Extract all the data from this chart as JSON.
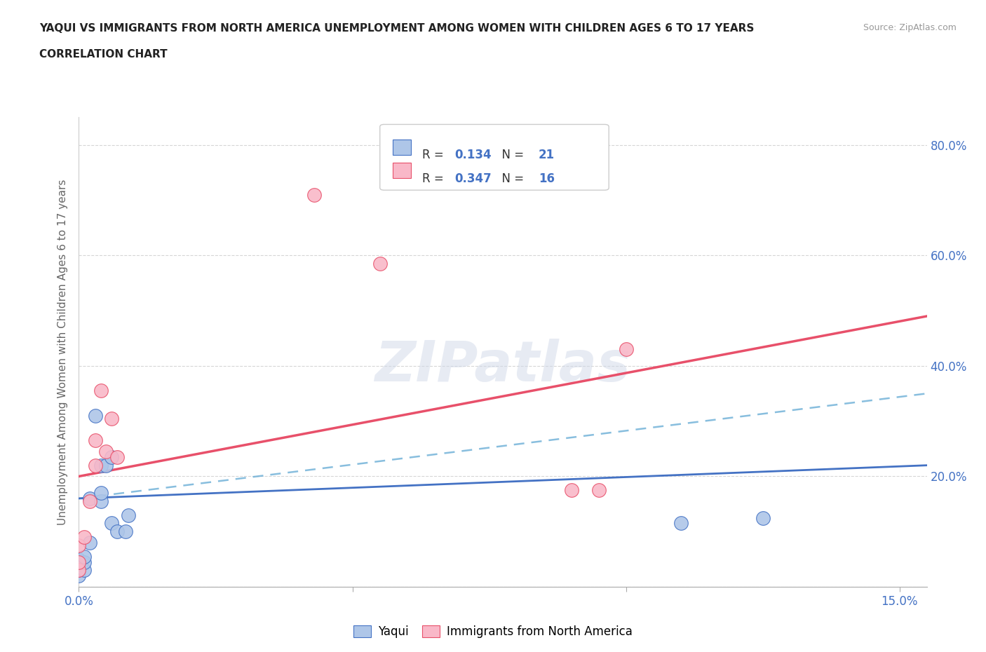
{
  "title_line1": "YAQUI VS IMMIGRANTS FROM NORTH AMERICA UNEMPLOYMENT AMONG WOMEN WITH CHILDREN AGES 6 TO 17 YEARS",
  "title_line2": "CORRELATION CHART",
  "source": "Source: ZipAtlas.com",
  "ylabel": "Unemployment Among Women with Children Ages 6 to 17 years",
  "xlim": [
    0.0,
    0.155
  ],
  "ylim": [
    0.0,
    0.85
  ],
  "watermark": "ZIPatlas",
  "legend_label1": "Yaqui",
  "legend_label2": "Immigrants from North America",
  "color_blue": "#aec6e8",
  "color_pink": "#f9b8c8",
  "line_blue_solid": "#4472c4",
  "line_blue_dash": "#6baed6",
  "line_pink": "#e8506a",
  "yaqui_x": [
    0.0,
    0.0,
    0.0,
    0.0,
    0.001,
    0.001,
    0.001,
    0.002,
    0.002,
    0.003,
    0.004,
    0.004,
    0.004,
    0.005,
    0.006,
    0.006,
    0.007,
    0.0085,
    0.009,
    0.11,
    0.125
  ],
  "yaqui_y": [
    0.02,
    0.03,
    0.04,
    0.05,
    0.03,
    0.045,
    0.055,
    0.08,
    0.16,
    0.31,
    0.155,
    0.17,
    0.22,
    0.22,
    0.115,
    0.235,
    0.1,
    0.1,
    0.13,
    0.115,
    0.125
  ],
  "immna_x": [
    0.0,
    0.0,
    0.0,
    0.001,
    0.002,
    0.003,
    0.003,
    0.004,
    0.005,
    0.006,
    0.007,
    0.043,
    0.055,
    0.09,
    0.095,
    0.1
  ],
  "immna_y": [
    0.03,
    0.045,
    0.075,
    0.09,
    0.155,
    0.22,
    0.265,
    0.355,
    0.245,
    0.305,
    0.235,
    0.71,
    0.585,
    0.175,
    0.175,
    0.43
  ],
  "yaqui_trend_x": [
    0.0,
    0.155
  ],
  "yaqui_trend_y": [
    0.16,
    0.22
  ],
  "immna_trend_x": [
    0.0,
    0.155
  ],
  "immna_trend_y": [
    0.2,
    0.49
  ],
  "yaqui_dash_trend_x": [
    0.0,
    0.155
  ],
  "yaqui_dash_trend_y": [
    0.16,
    0.35
  ],
  "marker_size": 200,
  "bg_color": "#ffffff",
  "grid_color": "#cccccc",
  "title_color": "#333333",
  "axis_color": "#4472c4",
  "right_tick_color": "#4472c4",
  "R1": "0.134",
  "N1": "21",
  "R2": "0.347",
  "N2": "16"
}
